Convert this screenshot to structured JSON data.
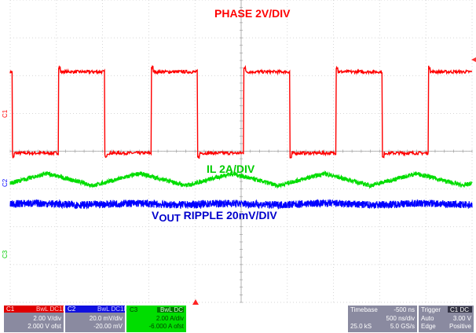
{
  "chart_data": {
    "type": "line",
    "grid": true,
    "x_divisions": 10,
    "y_divisions": 8,
    "series": [
      {
        "channel": "C1",
        "name": "PHASE 2V/DIV",
        "color": "#ff0000",
        "kind": "square",
        "high_div": 6.1,
        "low_div": 3.95,
        "period_div": 2.0,
        "rise_offsets_div": [
          -0.95,
          1.05,
          3.05,
          5.05,
          7.05
        ],
        "duty": 0.5
      },
      {
        "channel": "C3",
        "name": "IL  2A/DIV",
        "color": "#00dd00",
        "kind": "triangle",
        "center_div": 3.25,
        "amplitude_div": 0.16,
        "period_div": 2.0,
        "peak_offsets_div": [
          0.8,
          2.8,
          4.8,
          6.8,
          8.8
        ]
      },
      {
        "channel": "C2",
        "name": "VOUT RIPPLE  20mV/DIV",
        "color": "#0000ff",
        "kind": "noise",
        "center_div": 2.6,
        "amplitude_div": 0.1
      }
    ],
    "labels": {
      "phase": "PHASE 2V/DIV",
      "il": "IL  2A/DIV",
      "vout_main": "V",
      "vout_sub": "OUT",
      "vout_rest": " RIPPLE  20mV/DIV"
    },
    "markers": {
      "c1": "C1",
      "c2": "C2",
      "c3": "C3"
    }
  },
  "panels": {
    "c1": {
      "name": "C1",
      "tag": "BwL DC1M",
      "vdiv": "2.00 V/div",
      "ofst": "2.000 V ofst",
      "color": "#e00000"
    },
    "c2": {
      "name": "C2",
      "tag": "BwL DC1M",
      "vdiv": "20.0 mV/div",
      "ofst": "-20.00 mV",
      "color": "#1010e0"
    },
    "c3": {
      "name": "C3",
      "tag": "BwL DC",
      "vdiv": "2.00 A/div",
      "ofst": "-6.000 A ofst",
      "color": "#00dd00"
    },
    "timebase": {
      "title": "Timebase",
      "delay": "-500 ns",
      "tdiv": "500 ns/div",
      "samples": "25.0 kS",
      "rate": "5.0 GS/s"
    },
    "trigger": {
      "title": "Trigger",
      "src": "C1 DC",
      "mode": "Auto",
      "level": "3.00 V",
      "type": "Edge",
      "slope": "Positive"
    }
  }
}
